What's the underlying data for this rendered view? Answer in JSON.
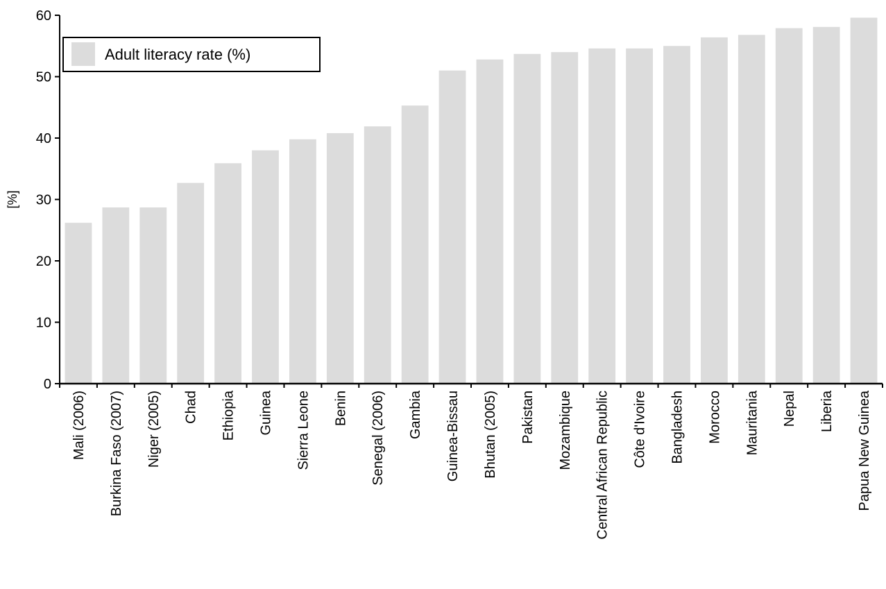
{
  "chart_data": {
    "type": "bar",
    "ylabel": "[%]",
    "xlabel": "",
    "ylim": [
      0,
      60
    ],
    "yticks": [
      "0",
      "10",
      "20",
      "30",
      "40",
      "50",
      "60"
    ],
    "grid": false,
    "legend": {
      "position": "top-left"
    },
    "series": [
      {
        "name": "Adult literacy rate (%)",
        "color": "#dcdcdc",
        "values": [
          26.2,
          28.7,
          28.7,
          32.7,
          35.9,
          38.0,
          39.8,
          40.8,
          41.9,
          45.3,
          51.0,
          52.8,
          53.7,
          54.0,
          54.6,
          54.6,
          55.0,
          56.4,
          56.8,
          57.9,
          58.1,
          59.6
        ]
      }
    ],
    "categories": [
      "Mali (2006)",
      "Burkina Faso (2007)",
      "Niger (2005)",
      "Chad",
      "Ethiopia",
      "Guinea",
      "Sierra Leone",
      "Benin",
      "Senegal (2006)",
      "Gambia",
      "Guinea-Bissau",
      "Bhutan (2005)",
      "Pakistan",
      "Mozambique",
      "Central African Republic",
      "Côte d'Ivoire",
      "Bangladesh",
      "Morocco",
      "Mauritania",
      "Nepal",
      "Liberia",
      "Papua New Guinea"
    ]
  }
}
